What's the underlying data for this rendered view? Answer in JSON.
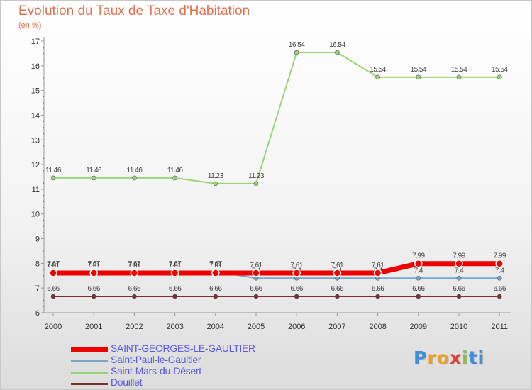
{
  "title": "Evolution du Taux de Taxe d'Habitation",
  "subtitle": "(en %)",
  "logo": {
    "p": "P",
    "r": "r",
    "o": "o",
    "x": "x",
    "i": "i",
    "t": "ti"
  },
  "chart_data": {
    "type": "line",
    "title": "Evolution du Taux de Taxe d'Habitation",
    "ylabel": "(en %)",
    "xlabel": "",
    "categories": [
      "2000",
      "2001",
      "2002",
      "2003",
      "2004",
      "2005",
      "2006",
      "2007",
      "2008",
      "2009",
      "2010",
      "2011"
    ],
    "ylim": [
      6,
      17
    ],
    "yticks": [
      "6",
      "7",
      "8",
      "9",
      "10",
      "11",
      "12",
      "13",
      "14",
      "15",
      "16",
      "17"
    ],
    "grid": false,
    "legend_position": "bottom-left",
    "series": [
      {
        "name": "Douillet",
        "color": "#7b3030",
        "values": [
          6.66,
          6.66,
          6.66,
          6.66,
          6.66,
          6.66,
          6.66,
          6.66,
          6.66,
          6.66,
          6.66,
          6.66
        ],
        "labels": [
          "6.66",
          "6.66",
          "6.66",
          "6.66",
          "6.66",
          "6.66",
          "6.66",
          "6.66",
          "6.66",
          "6.66",
          "6.66",
          "6.66"
        ]
      },
      {
        "name": "Saint-Paul-le-Gaultier",
        "color": "#7aa6c8",
        "values": [
          7.67,
          7.67,
          7.67,
          7.67,
          7.67,
          7.4,
          7.4,
          7.4,
          7.4,
          7.4,
          7.4,
          7.4
        ],
        "labels": [
          "7.67",
          "7.67",
          "7.67",
          "7.67",
          "7.67",
          "7.4",
          "7.4",
          "7.4",
          "7.4",
          "7.4",
          "7.4",
          "7.4"
        ]
      },
      {
        "name": "SAINT-GEORGES-LE-GAULTIER",
        "color": "#ee0000",
        "values": [
          7.61,
          7.61,
          7.61,
          7.61,
          7.61,
          7.61,
          7.61,
          7.61,
          7.61,
          7.99,
          7.99,
          7.99
        ],
        "labels": [
          "7.61",
          "7.61",
          "7.61",
          "7.61",
          "7.61",
          "7.61",
          "7.61",
          "7.61",
          "7.61",
          "7.99",
          "7.99",
          "7.99"
        ]
      },
      {
        "name": "Saint-Mars-du-Désert",
        "color": "#9ad47a",
        "values": [
          11.46,
          11.46,
          11.46,
          11.46,
          11.23,
          11.23,
          16.54,
          16.54,
          15.54,
          15.54,
          15.54,
          15.54
        ],
        "labels": [
          "11.46",
          "11.46",
          "11.46",
          "11.46",
          "11.23",
          "11.23",
          "16.54",
          "16.54",
          "15.54",
          "15.54",
          "15.54",
          "15.54"
        ]
      }
    ],
    "legend": [
      {
        "name": "SAINT-GEORGES-LE-GAULTIER",
        "color": "#ee0000"
      },
      {
        "name": "Saint-Paul-le-Gaultier",
        "color": "#7aa6c8"
      },
      {
        "name": "Saint-Mars-du-Désert",
        "color": "#9ad47a"
      },
      {
        "name": "Douillet",
        "color": "#7b3030"
      }
    ]
  }
}
